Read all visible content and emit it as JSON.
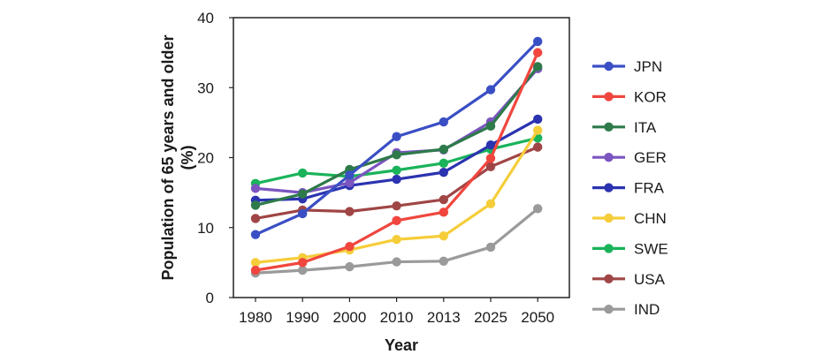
{
  "chart_data": {
    "type": "line",
    "title": "",
    "xlabel": "Year",
    "ylabel_line1": "Population of 65 years and older",
    "ylabel_line2": "(%)",
    "categories": [
      "1980",
      "1990",
      "2000",
      "2010",
      "2013",
      "2025",
      "2050"
    ],
    "ylim": [
      0,
      40
    ],
    "yticks": [
      "0",
      "10",
      "20",
      "30",
      "40"
    ],
    "grid": false,
    "legend_position": "right",
    "series": [
      {
        "name": "JPN",
        "color": "#3a4fc4",
        "values": [
          9.0,
          12.0,
          17.5,
          23.0,
          25.1,
          29.7,
          36.6
        ]
      },
      {
        "name": "KOR",
        "color": "#f0463e",
        "values": [
          3.9,
          5.0,
          7.3,
          11.0,
          12.2,
          19.9,
          35.0
        ]
      },
      {
        "name": "ITA",
        "color": "#2e7a4a",
        "values": [
          13.2,
          14.8,
          18.3,
          20.4,
          21.2,
          24.5,
          33.0
        ]
      },
      {
        "name": "GER",
        "color": "#7b55c0",
        "values": [
          15.6,
          15.0,
          16.4,
          20.7,
          21.1,
          25.1,
          32.7
        ]
      },
      {
        "name": "FRA",
        "color": "#2b33b0",
        "values": [
          13.9,
          14.1,
          16.0,
          16.9,
          17.9,
          21.8,
          25.5
        ]
      },
      {
        "name": "CHN",
        "color": "#f5cd3a",
        "values": [
          5.0,
          5.7,
          6.8,
          8.3,
          8.8,
          13.4,
          23.9
        ]
      },
      {
        "name": "SWE",
        "color": "#1ab35a",
        "values": [
          16.3,
          17.8,
          17.3,
          18.2,
          19.2,
          21.2,
          22.8
        ]
      },
      {
        "name": "USA",
        "color": "#a04545",
        "values": [
          11.3,
          12.5,
          12.3,
          13.1,
          14.0,
          18.7,
          21.5
        ]
      },
      {
        "name": "IND",
        "color": "#9a9a9a",
        "values": [
          3.5,
          3.9,
          4.4,
          5.1,
          5.2,
          7.2,
          12.7
        ]
      }
    ]
  }
}
